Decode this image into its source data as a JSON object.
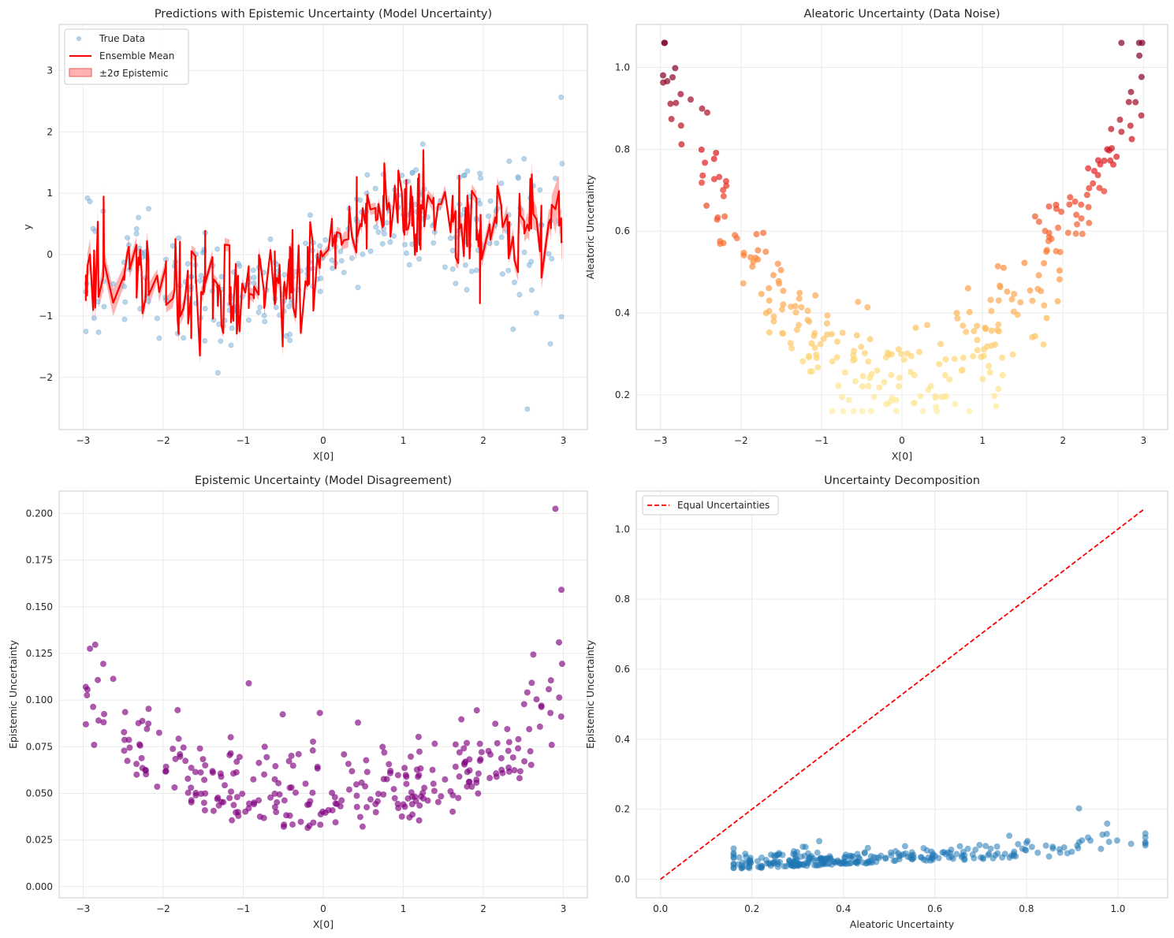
{
  "chart_data": [
    {
      "id": "p1",
      "type": "line",
      "title": "Predictions with Epistemic Uncertainty (Model Uncertainty)",
      "xlabel": "X[0]",
      "ylabel": "y",
      "xlim": [
        -3.3,
        3.3
      ],
      "ylim": [
        -2.85,
        3.75
      ],
      "xticks": [
        -3,
        -2,
        -1,
        0,
        1,
        2,
        3
      ],
      "xtick_labels": [
        "−3",
        "−2",
        "−1",
        "0",
        "1",
        "2",
        "3"
      ],
      "yticks": [
        -2,
        -1,
        0,
        1,
        2,
        3
      ],
      "ytick_labels": [
        "−2",
        "−1",
        "0",
        "1",
        "2",
        "3"
      ],
      "grid": true,
      "legend": {
        "position": "upper-left",
        "entries": [
          "True Data",
          "Ensemble Mean",
          "±2σ Epistemic"
        ]
      },
      "colors": {
        "scatter": "#7fb2d8",
        "line": "#ff0000",
        "band": "#ff7f7f"
      },
      "scatter_generator": "sin(x)*0.7 plus heteroscedastic noise; 300 points on [-3, 3]",
      "mean_generator": "jagged ensemble mean following data; band width = 2x epistemic std"
    },
    {
      "id": "p2",
      "type": "scatter",
      "title": "Aleatoric Uncertainty (Data Noise)",
      "xlabel": "X[0]",
      "ylabel": "Aleatoric Uncertainty",
      "xlim": [
        -3.3,
        3.3
      ],
      "ylim": [
        0.115,
        1.105
      ],
      "xticks": [
        -3,
        -2,
        -1,
        0,
        1,
        2,
        3
      ],
      "xtick_labels": [
        "−3",
        "−2",
        "−1",
        "0",
        "1",
        "2",
        "3"
      ],
      "yticks": [
        0.2,
        0.4,
        0.6,
        0.8,
        1.0
      ],
      "ytick_labels": [
        "0.2",
        "0.4",
        "0.6",
        "0.8",
        "1.0"
      ],
      "grid": true,
      "colormap": "YlOrRd",
      "generator": "U-shaped: 0.22 + 0.09*x^2 plus noise, colored by value"
    },
    {
      "id": "p3",
      "type": "scatter",
      "title": "Epistemic Uncertainty (Model Disagreement)",
      "xlabel": "X[0]",
      "ylabel": "Epistemic Uncertainty",
      "xlim": [
        -3.3,
        3.3
      ],
      "ylim": [
        -0.006,
        0.212
      ],
      "xticks": [
        -3,
        -2,
        -1,
        0,
        1,
        2,
        3
      ],
      "xtick_labels": [
        "−3",
        "−2",
        "−1",
        "0",
        "1",
        "2",
        "3"
      ],
      "yticks": [
        0.0,
        0.025,
        0.05,
        0.075,
        0.1,
        0.125,
        0.15,
        0.175,
        0.2
      ],
      "ytick_labels": [
        "0.000",
        "0.025",
        "0.050",
        "0.075",
        "0.100",
        "0.125",
        "0.150",
        "0.175",
        "0.200"
      ],
      "grid": true,
      "colors": {
        "points": "#800080"
      },
      "generator": "mostly 0.01-0.10 with larger values near edges (max 0.202 at x≈2.92)"
    },
    {
      "id": "p4",
      "type": "scatter",
      "title": "Uncertainty Decomposition",
      "xlabel": "Aleatoric Uncertainty",
      "ylabel": "Epistemic Uncertainty",
      "xlim": [
        -0.0528,
        1.1088
      ],
      "ylim": [
        -0.0528,
        1.1088
      ],
      "xticks": [
        0.0,
        0.2,
        0.4,
        0.6,
        0.8,
        1.0
      ],
      "xtick_labels": [
        "0.0",
        "0.2",
        "0.4",
        "0.6",
        "0.8",
        "1.0"
      ],
      "yticks": [
        0.0,
        0.2,
        0.4,
        0.6,
        0.8,
        1.0
      ],
      "ytick_labels": [
        "0.0",
        "0.2",
        "0.4",
        "0.6",
        "0.8",
        "1.0"
      ],
      "grid": true,
      "legend": {
        "position": "upper-left",
        "entries": [
          "Equal Uncertainties"
        ]
      },
      "reference_line": {
        "x": [
          0,
          1.056
        ],
        "y": [
          0,
          1.056
        ]
      },
      "colors": {
        "points": "#1f77b4",
        "ref": "#ff0000"
      },
      "generator": "aleatoric vs epistemic pairs from panels 2 and 3"
    }
  ]
}
